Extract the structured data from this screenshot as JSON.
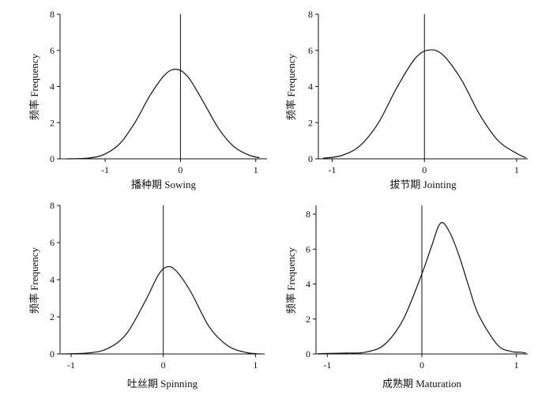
{
  "chart_data": [
    {
      "type": "line",
      "title": "",
      "xlabel": "播种期 Sowing",
      "ylabel": "频率 Frequency",
      "xlim": [
        -1.6,
        1.15
      ],
      "ylim": [
        0,
        8
      ],
      "xticks": [
        -1,
        0,
        1
      ],
      "yticks": [
        0,
        2,
        4,
        6,
        8
      ],
      "reference_line_x": 0,
      "grid": false,
      "series": [
        {
          "x": [
            -1.5,
            -1.2,
            -1.0,
            -0.8,
            -0.6,
            -0.4,
            -0.2,
            -0.05,
            0.1,
            0.3,
            0.5,
            0.7,
            0.9,
            1.05
          ],
          "values": [
            0.0,
            0.05,
            0.27,
            0.86,
            2.04,
            3.54,
            4.68,
            4.95,
            4.53,
            3.18,
            1.72,
            0.71,
            0.22,
            0.06
          ]
        }
      ]
    },
    {
      "type": "line",
      "title": "",
      "xlabel": "拔节期 Jointing",
      "ylabel": "频率 Frequency",
      "xlim": [
        -1.15,
        1.12
      ],
      "ylim": [
        0,
        8
      ],
      "xticks": [
        -1,
        0,
        1
      ],
      "yticks": [
        0,
        2,
        4,
        6,
        8
      ],
      "reference_line_x": 0,
      "grid": false,
      "series": [
        {
          "x": [
            -1.1,
            -0.9,
            -0.7,
            -0.5,
            -0.3,
            -0.1,
            0.05,
            0.2,
            0.4,
            0.6,
            0.8,
            1.0,
            1.1
          ],
          "values": [
            0.03,
            0.18,
            0.72,
            1.98,
            3.93,
            5.56,
            6.02,
            5.75,
            4.38,
            2.44,
            1.0,
            0.3,
            0.06
          ]
        }
      ]
    },
    {
      "type": "line",
      "title": "",
      "xlabel": "吐丝期 Spinning",
      "ylabel": "频率 Frequency",
      "xlim": [
        -1.12,
        1.1
      ],
      "ylim": [
        0,
        8
      ],
      "xticks": [
        -1,
        0,
        1
      ],
      "yticks": [
        0,
        2,
        4,
        6,
        8
      ],
      "reference_line_x": 0,
      "grid": false,
      "series": [
        {
          "x": [
            -1.1,
            -0.8,
            -0.6,
            -0.4,
            -0.2,
            -0.05,
            0.05,
            0.15,
            0.3,
            0.5,
            0.7,
            0.9,
            1.05
          ],
          "values": [
            0.0,
            0.06,
            0.3,
            1.08,
            2.8,
            4.28,
            4.7,
            4.42,
            3.33,
            1.45,
            0.44,
            0.08,
            0.0
          ]
        }
      ]
    },
    {
      "type": "line",
      "title": "",
      "xlabel": "成熟期 Maturation",
      "ylabel": "频率 Frequency",
      "xlim": [
        -1.12,
        1.12
      ],
      "ylim": [
        0,
        8.5
      ],
      "xticks": [
        -1,
        0,
        1
      ],
      "yticks": [
        0,
        2,
        4,
        6,
        8
      ],
      "reference_line_x": 0,
      "grid": false,
      "series": [
        {
          "x": [
            -1.1,
            -0.8,
            -0.6,
            -0.4,
            -0.2,
            0.0,
            0.1,
            0.2,
            0.3,
            0.4,
            0.5,
            0.6,
            0.8,
            0.95,
            1.05,
            1.1
          ],
          "values": [
            0.02,
            0.05,
            0.1,
            0.52,
            1.95,
            4.58,
            6.12,
            7.5,
            6.9,
            5.52,
            3.8,
            2.24,
            0.52,
            0.14,
            0.1,
            0.05
          ]
        }
      ]
    }
  ]
}
